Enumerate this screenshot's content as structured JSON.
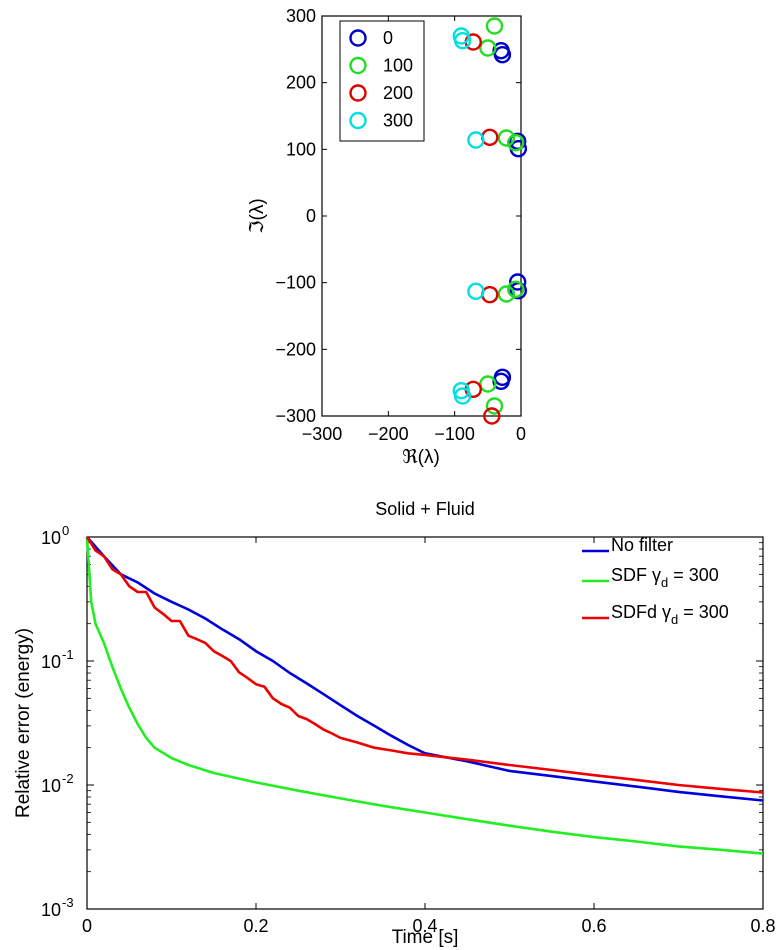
{
  "chart_data": [
    {
      "type": "scatter",
      "title": "",
      "xlabel": "ℜ(λ)",
      "ylabel": "ℑ(λ)",
      "xlim": [
        -300,
        0
      ],
      "ylim": [
        -300,
        300
      ],
      "xticks": [
        "−300",
        "−200",
        "−100",
        "0"
      ],
      "yticks": [
        "300",
        "200",
        "100",
        "0",
        "−100",
        "−200",
        "−300"
      ],
      "legend": "top-left",
      "marker": "circle-open",
      "series": [
        {
          "name": "0",
          "color": "#0000cc",
          "points": [
            [
              -30,
              248
            ],
            [
              -28,
              242
            ],
            [
              -5,
              112
            ],
            [
              -4,
              101
            ],
            [
              -5,
              -99
            ],
            [
              -4,
              -112
            ],
            [
              -30,
              -248
            ],
            [
              -28,
              -242
            ]
          ]
        },
        {
          "name": "100",
          "color": "#22dd22",
          "points": [
            [
              -40,
              285
            ],
            [
              -50,
              252
            ],
            [
              -22,
              117
            ],
            [
              -8,
              110
            ],
            [
              -22,
              -117
            ],
            [
              -8,
              -110
            ],
            [
              -50,
              -252
            ],
            [
              -40,
              -285
            ]
          ]
        },
        {
          "name": "200",
          "color": "#dd0000",
          "points": [
            [
              -72,
              261
            ],
            [
              -47,
              118
            ],
            [
              -47,
              -118
            ],
            [
              -72,
              -260
            ],
            [
              -44,
              -300
            ]
          ]
        },
        {
          "name": "300",
          "color": "#00e0e0",
          "points": [
            [
              -90,
              270
            ],
            [
              -88,
              263
            ],
            [
              -68,
              114
            ],
            [
              -68,
              -113
            ],
            [
              -90,
              -262
            ],
            [
              -88,
              -270
            ]
          ]
        }
      ]
    },
    {
      "type": "line",
      "title": "Solid + Fluid",
      "xlabel": "Time [s]",
      "ylabel": "Relative error (energy)",
      "xlim": [
        0,
        0.8
      ],
      "ylim": [
        0.001,
        1
      ],
      "yscale": "log",
      "xticks": [
        "0",
        "0.2",
        "0.4",
        "0.6",
        "0.8"
      ],
      "yticks": [
        {
          "base": "10",
          "exp": "0"
        },
        {
          "base": "10",
          "exp": "-1"
        },
        {
          "base": "10",
          "exp": "-2"
        },
        {
          "base": "10",
          "exp": "-3"
        }
      ],
      "legend": "top-right",
      "series": [
        {
          "name": "No filter",
          "name_sub": "",
          "name_suffix": "",
          "color": "#0000dd",
          "x": [
            0,
            0.02,
            0.04,
            0.06,
            0.08,
            0.1,
            0.12,
            0.14,
            0.16,
            0.18,
            0.2,
            0.22,
            0.24,
            0.26,
            0.28,
            0.3,
            0.32,
            0.34,
            0.36,
            0.38,
            0.4,
            0.45,
            0.5,
            0.55,
            0.6,
            0.65,
            0.7,
            0.75,
            0.8
          ],
          "y": [
            1.0,
            0.7,
            0.5,
            0.43,
            0.35,
            0.3,
            0.26,
            0.22,
            0.18,
            0.15,
            0.12,
            0.1,
            0.08,
            0.066,
            0.054,
            0.044,
            0.036,
            0.03,
            0.025,
            0.021,
            0.018,
            0.0155,
            0.013,
            0.0118,
            0.0107,
            0.0097,
            0.0088,
            0.0081,
            0.0075
          ]
        },
        {
          "name": "SDF ",
          "name_sub": "d",
          "name_suffix": " = 300",
          "name_greek": "γ",
          "color": "#22ee22",
          "x": [
            0,
            0.005,
            0.01,
            0.02,
            0.03,
            0.04,
            0.05,
            0.06,
            0.07,
            0.08,
            0.1,
            0.12,
            0.15,
            0.2,
            0.25,
            0.3,
            0.35,
            0.4,
            0.45,
            0.5,
            0.55,
            0.6,
            0.65,
            0.7,
            0.75,
            0.8
          ],
          "y": [
            1.0,
            0.3,
            0.2,
            0.14,
            0.09,
            0.06,
            0.042,
            0.031,
            0.024,
            0.02,
            0.0165,
            0.0145,
            0.0125,
            0.0105,
            0.009,
            0.0078,
            0.0068,
            0.006,
            0.0053,
            0.0047,
            0.0042,
            0.0038,
            0.0035,
            0.0032,
            0.003,
            0.0028
          ]
        },
        {
          "name": "SDFd ",
          "name_sub": "d",
          "name_suffix": " = 300",
          "name_greek": "γ",
          "color": "#ee0000",
          "x": [
            0,
            0.01,
            0.02,
            0.03,
            0.04,
            0.05,
            0.06,
            0.07,
            0.08,
            0.09,
            0.1,
            0.11,
            0.12,
            0.13,
            0.14,
            0.15,
            0.16,
            0.17,
            0.18,
            0.19,
            0.2,
            0.21,
            0.22,
            0.23,
            0.24,
            0.25,
            0.26,
            0.27,
            0.28,
            0.29,
            0.3,
            0.32,
            0.34,
            0.36,
            0.38,
            0.4,
            0.45,
            0.5,
            0.55,
            0.6,
            0.65,
            0.7,
            0.75,
            0.8
          ],
          "y": [
            1.0,
            0.78,
            0.7,
            0.55,
            0.5,
            0.4,
            0.36,
            0.36,
            0.27,
            0.24,
            0.21,
            0.21,
            0.16,
            0.15,
            0.14,
            0.12,
            0.11,
            0.1,
            0.081,
            0.073,
            0.065,
            0.062,
            0.05,
            0.045,
            0.042,
            0.036,
            0.034,
            0.031,
            0.028,
            0.026,
            0.024,
            0.022,
            0.02,
            0.019,
            0.018,
            0.0175,
            0.016,
            0.0145,
            0.0132,
            0.012,
            0.011,
            0.01,
            0.0093,
            0.0087
          ]
        }
      ]
    }
  ]
}
